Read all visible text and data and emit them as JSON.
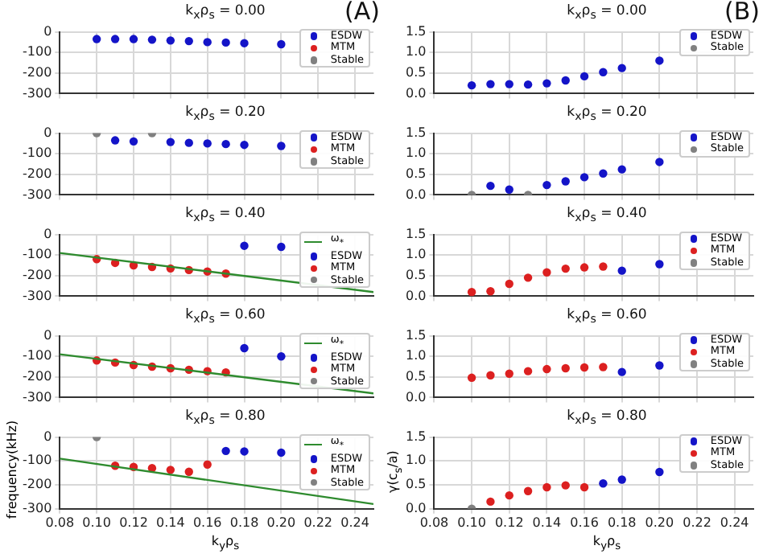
{
  "chart_data": [
    {
      "type": "scatter",
      "title": "k$_{x}$ρ$_{s}$ = 0.00",
      "annotations": [
        "(A)"
      ],
      "xlim": [
        0.08,
        0.25
      ],
      "xticks": [
        {
          "value": 0.08,
          "label": null
        },
        {
          "value": 0.1,
          "label": null
        },
        {
          "value": 0.12,
          "label": null
        },
        {
          "value": 0.14,
          "label": null
        },
        {
          "value": 0.16,
          "label": null
        },
        {
          "value": 0.18,
          "label": null
        },
        {
          "value": 0.2,
          "label": null
        },
        {
          "value": 0.22,
          "label": null
        },
        {
          "value": 0.24,
          "label": null
        }
      ],
      "ylim": [
        -300,
        0
      ],
      "yticks": [
        -300,
        -200,
        -100,
        0
      ],
      "grid": true,
      "legend": "top right",
      "marker": "circle",
      "tick_labels": "y",
      "series": [
        {
          "name": "ESDW",
          "color": "#1414c8",
          "x": [
            0.1,
            0.11,
            0.12,
            0.13,
            0.14,
            0.15,
            0.16,
            0.17,
            0.18,
            0.2
          ],
          "values": [
            -35,
            -35,
            -35,
            -38,
            -42,
            -45,
            -50,
            -52,
            -55,
            -60
          ]
        },
        {
          "name": "MTM",
          "color": "#dc2020"
        },
        {
          "name": "Stable",
          "color": "#808080"
        }
      ]
    },
    {
      "type": "scatter",
      "title": "k$_{x}$ρ$_{s}$ = 0.20",
      "xlim": [
        0.08,
        0.25
      ],
      "xticks": [
        {
          "value": 0.08,
          "label": null
        },
        {
          "value": 0.1,
          "label": null
        },
        {
          "value": 0.12,
          "label": null
        },
        {
          "value": 0.14,
          "label": null
        },
        {
          "value": 0.16,
          "label": null
        },
        {
          "value": 0.18,
          "label": null
        },
        {
          "value": 0.2,
          "label": null
        },
        {
          "value": 0.22,
          "label": null
        },
        {
          "value": 0.24,
          "label": null
        }
      ],
      "ylim": [
        -300,
        0
      ],
      "yticks": [
        -300,
        -200,
        -100,
        0
      ],
      "grid": true,
      "legend": "top right",
      "marker": "circle",
      "tick_labels": "y",
      "series": [
        {
          "name": "ESDW",
          "color": "#1414c8",
          "x": [
            0.11,
            0.12,
            0.14,
            0.15,
            0.16,
            0.17,
            0.18,
            0.2
          ],
          "values": [
            -35,
            -40,
            -43,
            -47,
            -50,
            -53,
            -57,
            -62
          ]
        },
        {
          "name": "MTM",
          "color": "#dc2020"
        },
        {
          "name": "Stable",
          "color": "#808080",
          "x": [
            0.1,
            0.13
          ],
          "values": [
            0,
            0
          ]
        }
      ]
    },
    {
      "type": "scatter",
      "title": "k$_{x}$ρ$_{s}$ = 0.40",
      "xlim": [
        0.08,
        0.25
      ],
      "xticks": [
        {
          "value": 0.08,
          "label": null
        },
        {
          "value": 0.1,
          "label": null
        },
        {
          "value": 0.12,
          "label": null
        },
        {
          "value": 0.14,
          "label": null
        },
        {
          "value": 0.16,
          "label": null
        },
        {
          "value": 0.18,
          "label": null
        },
        {
          "value": 0.2,
          "label": null
        },
        {
          "value": 0.22,
          "label": null
        },
        {
          "value": 0.24,
          "label": null
        }
      ],
      "ylim": [
        -300,
        0
      ],
      "yticks": [
        -300,
        -200,
        -100,
        0
      ],
      "grid": true,
      "legend": "top right",
      "marker": "circle",
      "tick_labels": "y",
      "series": [
        {
          "name": "ω$_{*}$",
          "type": "line",
          "marker": "none",
          "color": "#2e8b2e",
          "x": [
            0.08,
            0.25
          ],
          "values": [
            -90,
            -280
          ]
        },
        {
          "name": "ESDW",
          "color": "#1414c8",
          "x": [
            0.18,
            0.2
          ],
          "values": [
            -55,
            -60
          ]
        },
        {
          "name": "MTM",
          "color": "#dc2020",
          "x": [
            0.1,
            0.11,
            0.12,
            0.13,
            0.14,
            0.15,
            0.16,
            0.17
          ],
          "values": [
            -120,
            -138,
            -150,
            -158,
            -165,
            -173,
            -180,
            -190
          ]
        },
        {
          "name": "Stable",
          "color": "#808080"
        }
      ]
    },
    {
      "type": "scatter",
      "title": "k$_{x}$ρ$_{s}$ = 0.60",
      "xlim": [
        0.08,
        0.25
      ],
      "xticks": [
        {
          "value": 0.08,
          "label": null
        },
        {
          "value": 0.1,
          "label": null
        },
        {
          "value": 0.12,
          "label": null
        },
        {
          "value": 0.14,
          "label": null
        },
        {
          "value": 0.16,
          "label": null
        },
        {
          "value": 0.18,
          "label": null
        },
        {
          "value": 0.2,
          "label": null
        },
        {
          "value": 0.22,
          "label": null
        },
        {
          "value": 0.24,
          "label": null
        }
      ],
      "ylim": [
        -300,
        0
      ],
      "yticks": [
        -300,
        -200,
        -100,
        0
      ],
      "grid": true,
      "legend": "top right",
      "marker": "circle",
      "tick_labels": "y",
      "series": [
        {
          "name": "ω$_{*}$",
          "type": "line",
          "marker": "none",
          "color": "#2e8b2e",
          "x": [
            0.08,
            0.25
          ],
          "values": [
            -90,
            -280
          ]
        },
        {
          "name": "ESDW",
          "color": "#1414c8",
          "x": [
            0.18,
            0.2
          ],
          "values": [
            -60,
            -100
          ]
        },
        {
          "name": "MTM",
          "color": "#dc2020",
          "x": [
            0.1,
            0.11,
            0.12,
            0.13,
            0.14,
            0.15,
            0.16,
            0.17
          ],
          "values": [
            -120,
            -130,
            -142,
            -150,
            -158,
            -165,
            -172,
            -178
          ]
        },
        {
          "name": "Stable",
          "color": "#808080"
        }
      ]
    },
    {
      "type": "scatter",
      "title": "k$_{x}$ρ$_{s}$ = 0.80",
      "xlabel": "k$_{y}$ρ$_{s}$",
      "ylabel": "frequency(kHz)",
      "xlim": [
        0.08,
        0.25
      ],
      "xticks": [
        {
          "value": 0.08,
          "label": "0.08"
        },
        {
          "value": 0.1,
          "label": "0.10"
        },
        {
          "value": 0.12,
          "label": "0.12"
        },
        {
          "value": 0.14,
          "label": "0.14"
        },
        {
          "value": 0.16,
          "label": "0.16"
        },
        {
          "value": 0.18,
          "label": "0.18"
        },
        {
          "value": 0.2,
          "label": "0.20"
        },
        {
          "value": 0.22,
          "label": "0.22"
        },
        {
          "value": 0.24,
          "label": "0.24"
        }
      ],
      "ylim": [
        -300,
        0
      ],
      "yticks": [
        -300,
        -200,
        -100,
        0
      ],
      "grid": true,
      "legend": "top right",
      "marker": "circle",
      "series": [
        {
          "name": "ω$_{*}$",
          "type": "line",
          "marker": "none",
          "color": "#2e8b2e",
          "x": [
            0.08,
            0.25
          ],
          "values": [
            -90,
            -280
          ]
        },
        {
          "name": "ESDW",
          "color": "#1414c8",
          "x": [
            0.17,
            0.18,
            0.2
          ],
          "values": [
            -58,
            -60,
            -65
          ]
        },
        {
          "name": "MTM",
          "color": "#dc2020",
          "x": [
            0.11,
            0.12,
            0.13,
            0.14,
            0.15,
            0.16
          ],
          "values": [
            -120,
            -125,
            -130,
            -137,
            -145,
            -115
          ]
        },
        {
          "name": "Stable",
          "color": "#808080",
          "x": [
            0.1
          ],
          "values": [
            0
          ]
        }
      ]
    },
    {
      "type": "scatter",
      "title": "k$_{x}$ρ$_{s}$ = 0.00",
      "annotations": [
        "(B)"
      ],
      "xlim": [
        0.08,
        0.25
      ],
      "xticks": [
        {
          "value": 0.08,
          "label": null
        },
        {
          "value": 0.1,
          "label": null
        },
        {
          "value": 0.12,
          "label": null
        },
        {
          "value": 0.14,
          "label": null
        },
        {
          "value": 0.16,
          "label": null
        },
        {
          "value": 0.18,
          "label": null
        },
        {
          "value": 0.2,
          "label": null
        },
        {
          "value": 0.22,
          "label": null
        },
        {
          "value": 0.24,
          "label": null
        }
      ],
      "ylim": [
        0,
        1.5
      ],
      "yticks": [
        {
          "value": 0,
          "label": "0.0"
        },
        {
          "value": 0.5,
          "label": "0.5"
        },
        {
          "value": 1,
          "label": "1.0"
        },
        {
          "value": 1.5,
          "label": "1.5"
        }
      ],
      "grid": true,
      "legend": "top right",
      "marker": "circle",
      "tick_labels": "y",
      "series": [
        {
          "name": "ESDW",
          "color": "#1414c8",
          "x": [
            0.1,
            0.11,
            0.12,
            0.13,
            0.14,
            0.15,
            0.16,
            0.17,
            0.18,
            0.2
          ],
          "values": [
            0.2,
            0.23,
            0.23,
            0.22,
            0.25,
            0.32,
            0.42,
            0.52,
            0.62,
            0.8
          ]
        },
        {
          "name": "Stable",
          "color": "#808080"
        }
      ]
    },
    {
      "type": "scatter",
      "title": "k$_{x}$ρ$_{s}$ = 0.20",
      "xlim": [
        0.08,
        0.25
      ],
      "xticks": [
        {
          "value": 0.08,
          "label": null
        },
        {
          "value": 0.1,
          "label": null
        },
        {
          "value": 0.12,
          "label": null
        },
        {
          "value": 0.14,
          "label": null
        },
        {
          "value": 0.16,
          "label": null
        },
        {
          "value": 0.18,
          "label": null
        },
        {
          "value": 0.2,
          "label": null
        },
        {
          "value": 0.22,
          "label": null
        },
        {
          "value": 0.24,
          "label": null
        }
      ],
      "ylim": [
        0,
        1.5
      ],
      "yticks": [
        {
          "value": 0,
          "label": "0.0"
        },
        {
          "value": 0.5,
          "label": "0.5"
        },
        {
          "value": 1,
          "label": "1.0"
        },
        {
          "value": 1.5,
          "label": "1.5"
        }
      ],
      "grid": true,
      "legend": "top right",
      "marker": "circle",
      "tick_labels": "y",
      "series": [
        {
          "name": "ESDW",
          "color": "#1414c8",
          "x": [
            0.11,
            0.12,
            0.14,
            0.15,
            0.16,
            0.17,
            0.18,
            0.2
          ],
          "values": [
            0.22,
            0.13,
            0.24,
            0.33,
            0.43,
            0.52,
            0.62,
            0.8
          ]
        },
        {
          "name": "Stable",
          "color": "#808080",
          "x": [
            0.1,
            0.13
          ],
          "values": [
            0,
            0
          ]
        }
      ]
    },
    {
      "type": "scatter",
      "title": "k$_{x}$ρ$_{s}$ = 0.40",
      "xlim": [
        0.08,
        0.25
      ],
      "xticks": [
        {
          "value": 0.08,
          "label": null
        },
        {
          "value": 0.1,
          "label": null
        },
        {
          "value": 0.12,
          "label": null
        },
        {
          "value": 0.14,
          "label": null
        },
        {
          "value": 0.16,
          "label": null
        },
        {
          "value": 0.18,
          "label": null
        },
        {
          "value": 0.2,
          "label": null
        },
        {
          "value": 0.22,
          "label": null
        },
        {
          "value": 0.24,
          "label": null
        }
      ],
      "ylim": [
        0,
        1.5
      ],
      "yticks": [
        {
          "value": 0,
          "label": "0.0"
        },
        {
          "value": 0.5,
          "label": "0.5"
        },
        {
          "value": 1,
          "label": "1.0"
        },
        {
          "value": 1.5,
          "label": "1.5"
        }
      ],
      "grid": true,
      "legend": "top right",
      "marker": "circle",
      "tick_labels": "y",
      "series": [
        {
          "name": "ESDW",
          "color": "#1414c8",
          "x": [
            0.18,
            0.2
          ],
          "values": [
            0.62,
            0.78
          ]
        },
        {
          "name": "MTM",
          "color": "#dc2020",
          "x": [
            0.1,
            0.11,
            0.12,
            0.13,
            0.14,
            0.15,
            0.16,
            0.17
          ],
          "values": [
            0.1,
            0.12,
            0.3,
            0.45,
            0.58,
            0.67,
            0.7,
            0.72
          ]
        },
        {
          "name": "Stable",
          "color": "#808080"
        }
      ]
    },
    {
      "type": "scatter",
      "title": "k$_{x}$ρ$_{s}$ = 0.60",
      "xlim": [
        0.08,
        0.25
      ],
      "xticks": [
        {
          "value": 0.08,
          "label": null
        },
        {
          "value": 0.1,
          "label": null
        },
        {
          "value": 0.12,
          "label": null
        },
        {
          "value": 0.14,
          "label": null
        },
        {
          "value": 0.16,
          "label": null
        },
        {
          "value": 0.18,
          "label": null
        },
        {
          "value": 0.2,
          "label": null
        },
        {
          "value": 0.22,
          "label": null
        },
        {
          "value": 0.24,
          "label": null
        }
      ],
      "ylim": [
        0,
        1.5
      ],
      "yticks": [
        {
          "value": 0,
          "label": "0.0"
        },
        {
          "value": 0.5,
          "label": "0.5"
        },
        {
          "value": 1,
          "label": "1.0"
        },
        {
          "value": 1.5,
          "label": "1.5"
        }
      ],
      "grid": true,
      "legend": "top right",
      "marker": "circle",
      "tick_labels": "y",
      "series": [
        {
          "name": "ESDW",
          "color": "#1414c8",
          "x": [
            0.18,
            0.2
          ],
          "values": [
            0.62,
            0.78
          ]
        },
        {
          "name": "MTM",
          "color": "#dc2020",
          "x": [
            0.1,
            0.11,
            0.12,
            0.13,
            0.14,
            0.15,
            0.16,
            0.17
          ],
          "values": [
            0.48,
            0.54,
            0.58,
            0.64,
            0.69,
            0.71,
            0.73,
            0.74
          ]
        },
        {
          "name": "Stable",
          "color": "#808080"
        }
      ]
    },
    {
      "type": "scatter",
      "title": "k$_{x}$ρ$_{s}$ = 0.80",
      "xlabel": "k$_{y}$ρ$_{s}$",
      "ylabel": "γ(c$_{s}$/a)",
      "xlim": [
        0.08,
        0.25
      ],
      "xticks": [
        {
          "value": 0.08,
          "label": "0.08"
        },
        {
          "value": 0.1,
          "label": "0.10"
        },
        {
          "value": 0.12,
          "label": "0.12"
        },
        {
          "value": 0.14,
          "label": "0.14"
        },
        {
          "value": 0.16,
          "label": "0.16"
        },
        {
          "value": 0.18,
          "label": "0.18"
        },
        {
          "value": 0.2,
          "label": "0.20"
        },
        {
          "value": 0.22,
          "label": "0.22"
        },
        {
          "value": 0.24,
          "label": "0.24"
        }
      ],
      "ylim": [
        0,
        1.5
      ],
      "yticks": [
        {
          "value": 0,
          "label": "0.0"
        },
        {
          "value": 0.5,
          "label": "0.5"
        },
        {
          "value": 1,
          "label": "1.0"
        },
        {
          "value": 1.5,
          "label": "1.5"
        }
      ],
      "grid": true,
      "legend": "top right",
      "marker": "circle",
      "series": [
        {
          "name": "ESDW",
          "color": "#1414c8",
          "x": [
            0.17,
            0.18,
            0.2
          ],
          "values": [
            0.53,
            0.61,
            0.77
          ]
        },
        {
          "name": "MTM",
          "color": "#dc2020",
          "x": [
            0.11,
            0.12,
            0.13,
            0.14,
            0.15,
            0.16
          ],
          "values": [
            0.15,
            0.28,
            0.37,
            0.45,
            0.49,
            0.45
          ]
        },
        {
          "name": "Stable",
          "color": "#808080",
          "x": [
            0.1
          ],
          "values": [
            0
          ]
        }
      ]
    }
  ]
}
